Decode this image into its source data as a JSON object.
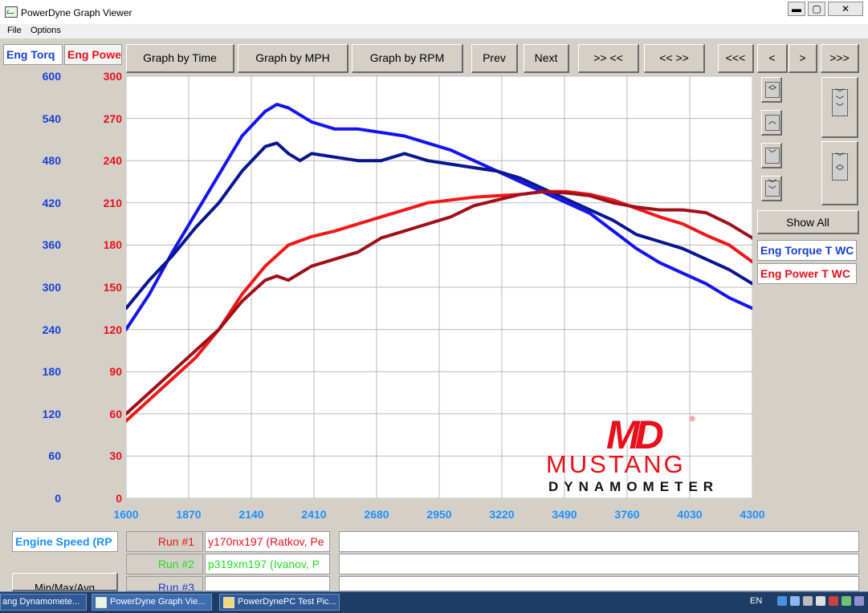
{
  "window": {
    "title": "PowerDyne Graph Viewer",
    "minimize": "▬",
    "maximize": "▢",
    "close": "✕"
  },
  "menu": {
    "file": "File",
    "options": "Options"
  },
  "tabs": {
    "torque": "Eng Torq",
    "power": "Eng Powe"
  },
  "toolbar": {
    "graph_by_time": "Graph by Time",
    "graph_by_mph": "Graph by MPH",
    "graph_by_rpm": "Graph by RPM",
    "prev": "Prev",
    "next": "Next",
    "zoom_in": ">> <<",
    "zoom_out": "<< >>",
    "first": "<<<",
    "step_back": "<",
    "step_forward": ">",
    "last": ">>>"
  },
  "side": {
    "show_all": "Show All",
    "legend_torque": "Eng Torque T WC",
    "legend_power": "Eng Power T WC",
    "expand_icon": "expand-vertical-icon",
    "collapse_icon": "collapse-vertical-icon"
  },
  "bottom": {
    "x_channel": "Engine Speed (RP",
    "run1_label": "Run #1",
    "run1_name": "y170nx197 (Ratkov, Pe",
    "run2_label": "Run #2",
    "run2_name": "p319xm197 (Ivanov, P",
    "run3_label": "Run #3",
    "minmax": "Min/Max/Avg"
  },
  "logo": {
    "monogram": "MD",
    "mark": "®",
    "word1": "MUSTANG",
    "word2": "DYNAMOMETER"
  },
  "taskbar": {
    "item1": "ang Dynamomete...",
    "item2": "PowerDyne Graph Vie...",
    "item3": "PowerDynePC Test Pic...",
    "lang": "EN"
  },
  "colors": {
    "torque_axis": "#1a3fd6",
    "power_axis": "#e8101a",
    "x_axis": "#1e90ff"
  },
  "chart_data": {
    "type": "line",
    "x_ticks": [
      1600,
      1870,
      2140,
      2410,
      2680,
      2950,
      3220,
      3490,
      3760,
      4030,
      4300
    ],
    "xlim": [
      1600,
      4300
    ],
    "y_left_ticks": [
      0,
      60,
      120,
      180,
      240,
      300,
      360,
      420,
      480,
      540,
      600
    ],
    "y_left_lim": [
      0,
      600
    ],
    "y_right_ticks": [
      0,
      30,
      60,
      90,
      120,
      150,
      180,
      210,
      240,
      270,
      300
    ],
    "y_right_lim": [
      0,
      300
    ],
    "grid": true,
    "series": [
      {
        "axis": "left",
        "color": "#1414f0",
        "x": [
          1600,
          1700,
          1800,
          1900,
          2000,
          2100,
          2200,
          2250,
          2300,
          2400,
          2500,
          2600,
          2700,
          2800,
          2900,
          3000,
          3100,
          3200,
          3300,
          3400,
          3500,
          3600,
          3700,
          3800,
          3900,
          4000,
          4100,
          4200,
          4300
        ],
        "y": [
          240,
          290,
          350,
          405,
          460,
          515,
          550,
          560,
          555,
          535,
          525,
          525,
          520,
          515,
          505,
          495,
          480,
          465,
          450,
          435,
          420,
          405,
          380,
          355,
          335,
          320,
          305,
          285,
          270
        ]
      },
      {
        "axis": "left",
        "color": "#0a1690",
        "x": [
          1600,
          1700,
          1800,
          1900,
          2000,
          2100,
          2200,
          2250,
          2300,
          2350,
          2400,
          2500,
          2600,
          2700,
          2800,
          2900,
          3000,
          3100,
          3200,
          3300,
          3400,
          3500,
          3600,
          3700,
          3800,
          3900,
          4000,
          4100,
          4200,
          4300
        ],
        "y": [
          270,
          310,
          345,
          385,
          420,
          465,
          500,
          505,
          490,
          480,
          490,
          485,
          480,
          480,
          490,
          480,
          475,
          470,
          465,
          455,
          440,
          425,
          410,
          395,
          375,
          365,
          355,
          340,
          325,
          305
        ]
      },
      {
        "axis": "right",
        "color": "#f01818",
        "x": [
          1600,
          1700,
          1800,
          1900,
          2000,
          2100,
          2200,
          2300,
          2400,
          2500,
          2600,
          2700,
          2800,
          2900,
          3000,
          3100,
          3200,
          3300,
          3400,
          3500,
          3600,
          3700,
          3800,
          3900,
          4000,
          4100,
          4200,
          4300
        ],
        "y": [
          55,
          70,
          85,
          100,
          120,
          145,
          165,
          180,
          186,
          190,
          195,
          200,
          205,
          210,
          212,
          214,
          215,
          216,
          218,
          218,
          216,
          212,
          206,
          200,
          195,
          187,
          180,
          168
        ]
      },
      {
        "axis": "right",
        "color": "#a01018",
        "x": [
          1600,
          1700,
          1800,
          1900,
          2000,
          2100,
          2200,
          2250,
          2300,
          2400,
          2500,
          2600,
          2700,
          2800,
          2900,
          3000,
          3100,
          3200,
          3300,
          3400,
          3500,
          3600,
          3700,
          3800,
          3900,
          4000,
          4100,
          4200,
          4300
        ],
        "y": [
          60,
          75,
          90,
          105,
          120,
          140,
          155,
          158,
          155,
          165,
          170,
          175,
          185,
          190,
          195,
          200,
          208,
          212,
          216,
          218,
          217,
          215,
          210,
          207,
          205,
          205,
          203,
          195,
          185
        ]
      }
    ]
  }
}
